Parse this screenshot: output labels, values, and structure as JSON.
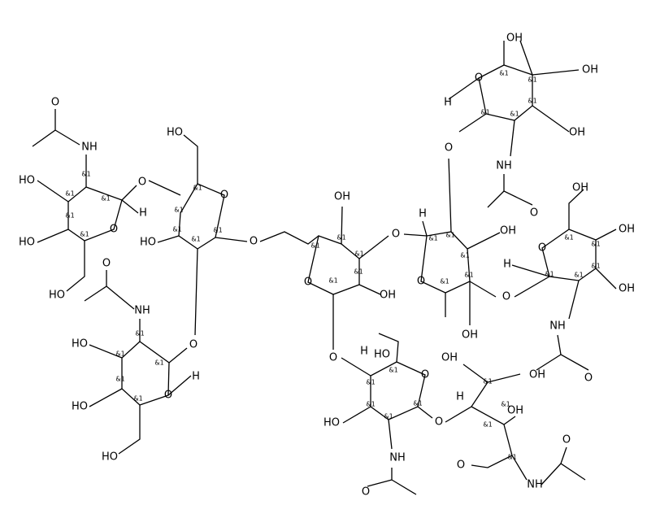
{
  "labels": [
    "O",
    "NH",
    "HO",
    "HO",
    "O",
    "H",
    "O",
    "HO",
    "&1",
    "&1",
    "&1",
    "&1",
    "&1",
    "HO",
    "O",
    "HO",
    "O",
    "&1",
    "&1",
    "&1",
    "&1",
    "&1",
    "O",
    "NH",
    "HO",
    "HO",
    "O",
    "O",
    "H",
    "HO",
    "&1",
    "&1",
    "&1",
    "&1",
    "&1",
    "OH",
    "O",
    "OH",
    "O",
    "O",
    "&1",
    "&1",
    "&1",
    "&1",
    "&1",
    "H",
    "O",
    "OH",
    "OH",
    "O",
    "&1",
    "&1",
    "&1",
    "&1",
    "&1",
    "OH",
    "OH",
    "O",
    "H",
    "OH",
    "NH",
    "O",
    "&1",
    "&1",
    "&1",
    "&1",
    "&1",
    "OH",
    "OH",
    "O",
    "O",
    "OH",
    "H",
    "NH",
    "O",
    "&1",
    "&1",
    "&1",
    "&1",
    "&1",
    "HO",
    "H",
    "O",
    "HO",
    "NH",
    "O",
    "O",
    "&1",
    "&1",
    "&1",
    "&1",
    "&1",
    "OH",
    "OH",
    "H",
    "OH",
    "O",
    "NH",
    "O",
    "&1",
    "&1",
    "&1",
    "&1"
  ]
}
